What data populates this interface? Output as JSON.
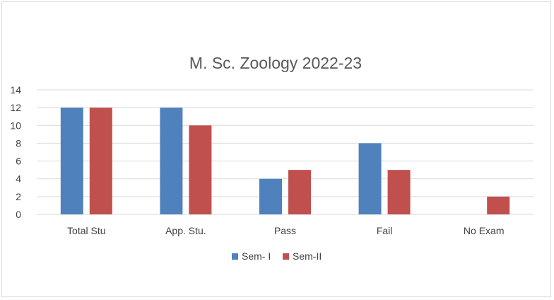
{
  "chart_data": {
    "type": "bar",
    "title": "M. Sc. Zoology 2022-23",
    "xlabel": "",
    "ylabel": "",
    "categories": [
      "Total Stu",
      "App. Stu.",
      "Pass",
      "Fail",
      "No Exam"
    ],
    "series": [
      {
        "name": "Sem- I",
        "values": [
          12,
          12,
          4,
          8,
          0
        ],
        "color": "#4f81bd"
      },
      {
        "name": "Sem-II",
        "values": [
          12,
          10,
          5,
          5,
          2
        ],
        "color": "#c0504d"
      }
    ],
    "ylim": [
      0,
      14
    ],
    "yticks": [
      0,
      2,
      4,
      6,
      8,
      10,
      12,
      14
    ],
    "grid": true,
    "legend_position": "bottom"
  }
}
